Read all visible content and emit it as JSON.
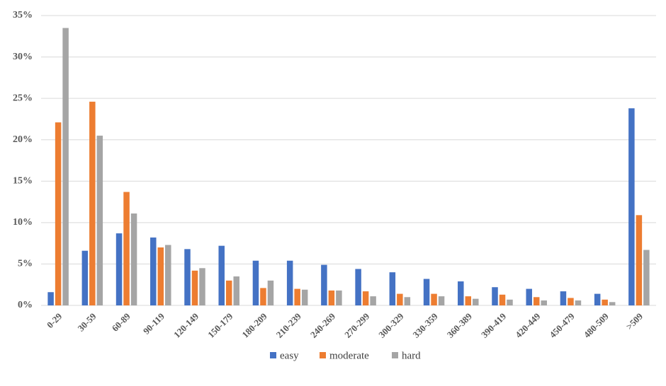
{
  "chart_data": {
    "type": "bar",
    "categories": [
      "0-29",
      "30-59",
      "60-89",
      "90-119",
      "120-149",
      "150-179",
      "180-209",
      "210-239",
      "240-269",
      "270-299",
      "300-329",
      "330-359",
      "360-389",
      "390-419",
      "420-449",
      "450-479",
      "480-509",
      ">509"
    ],
    "series": [
      {
        "name": "easy",
        "color": "#4472c4",
        "values": [
          1.6,
          6.6,
          8.7,
          8.2,
          6.8,
          7.2,
          5.4,
          5.4,
          4.9,
          4.4,
          4.0,
          3.2,
          2.9,
          2.2,
          2.0,
          1.7,
          1.4,
          23.8
        ]
      },
      {
        "name": "moderate",
        "color": "#ed7d31",
        "values": [
          22.1,
          24.6,
          13.7,
          7.0,
          4.2,
          3.0,
          2.1,
          2.0,
          1.8,
          1.7,
          1.4,
          1.4,
          1.1,
          1.3,
          1.0,
          0.9,
          0.7,
          10.9
        ]
      },
      {
        "name": "hard",
        "color": "#a5a5a5",
        "values": [
          33.5,
          20.5,
          11.1,
          7.3,
          4.5,
          3.5,
          3.0,
          1.9,
          1.8,
          1.1,
          1.0,
          1.1,
          0.8,
          0.7,
          0.6,
          0.6,
          0.4,
          6.7
        ]
      }
    ],
    "ylim": [
      0,
      35
    ],
    "yticks": [
      {
        "value": 0,
        "label": "0%"
      },
      {
        "value": 5,
        "label": "5%"
      },
      {
        "value": 10,
        "label": "10%"
      },
      {
        "value": 15,
        "label": "15%"
      },
      {
        "value": 20,
        "label": "20%"
      },
      {
        "value": 25,
        "label": "25%"
      },
      {
        "value": 30,
        "label": "30%"
      },
      {
        "value": 35,
        "label": "35%"
      }
    ],
    "grid": true,
    "legend": "bottom"
  }
}
